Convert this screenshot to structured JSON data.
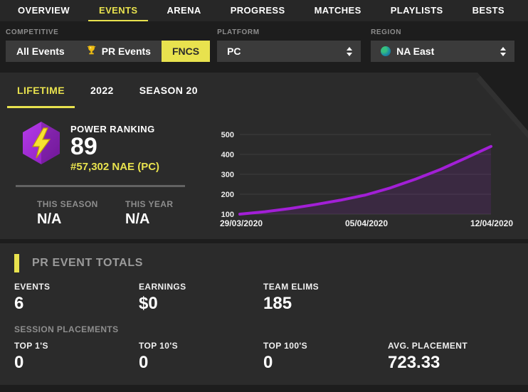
{
  "nav": {
    "items": [
      {
        "label": "OVERVIEW",
        "active": false
      },
      {
        "label": "EVENTS",
        "active": true
      },
      {
        "label": "ARENA",
        "active": false
      },
      {
        "label": "PROGRESS",
        "active": false
      },
      {
        "label": "MATCHES",
        "active": false
      },
      {
        "label": "PLAYLISTS",
        "active": false
      },
      {
        "label": "BESTS",
        "active": false
      }
    ]
  },
  "filters": {
    "competitive": {
      "label": "COMPETITIVE",
      "options": [
        {
          "label": "All Events",
          "active": false
        },
        {
          "label": "PR Events",
          "icon": "trophy",
          "active": false
        },
        {
          "label": "FNCS",
          "active": true
        }
      ]
    },
    "platform": {
      "label": "PLATFORM",
      "value": "PC"
    },
    "region": {
      "label": "REGION",
      "value": "NA East",
      "icon": "globe"
    }
  },
  "tabs": [
    {
      "label": "LIFETIME",
      "active": true
    },
    {
      "label": "2022",
      "active": false
    },
    {
      "label": "SEASON 20",
      "active": false
    }
  ],
  "power_ranking": {
    "label": "POWER RANKING",
    "value": "89",
    "rank": "#57,302 NAE (PC)",
    "this_season_label": "THIS SEASON",
    "this_season_value": "N/A",
    "this_year_label": "THIS YEAR",
    "this_year_value": "N/A"
  },
  "chart_data": {
    "type": "line",
    "x_tick_labels": [
      "29/03/2020",
      "05/04/2020",
      "12/04/2020"
    ],
    "y_ticks": [
      500,
      400,
      300,
      200,
      100
    ],
    "ylim": [
      100,
      500
    ],
    "values": [
      100,
      112,
      128,
      148,
      170,
      196,
      232,
      276,
      325,
      382,
      440
    ],
    "grid": true,
    "legend": false,
    "line_color": "#a21fd6",
    "fill_color": "rgba(162,31,214,0.13)",
    "grid_color": "#3d3d3d"
  },
  "totals": {
    "title": "PR EVENT TOTALS",
    "stats": [
      {
        "label": "EVENTS",
        "value": "6"
      },
      {
        "label": "EARNINGS",
        "value": "$0"
      },
      {
        "label": "TEAM ELIMS",
        "value": "185"
      }
    ],
    "session": {
      "title": "SESSION PLACEMENTS",
      "stats": [
        {
          "label": "TOP 1'S",
          "value": "0"
        },
        {
          "label": "TOP 10'S",
          "value": "0"
        },
        {
          "label": "TOP 100'S",
          "value": "0"
        },
        {
          "label": "AVG. PLACEMENT",
          "value": "723.33"
        }
      ]
    }
  },
  "colors": {
    "accent": "#e8e24e",
    "panel": "#2b2b2b",
    "page_background": "#1d1d1d",
    "chart_line": "#a21fd6",
    "rank_text": "#e8e24e"
  }
}
